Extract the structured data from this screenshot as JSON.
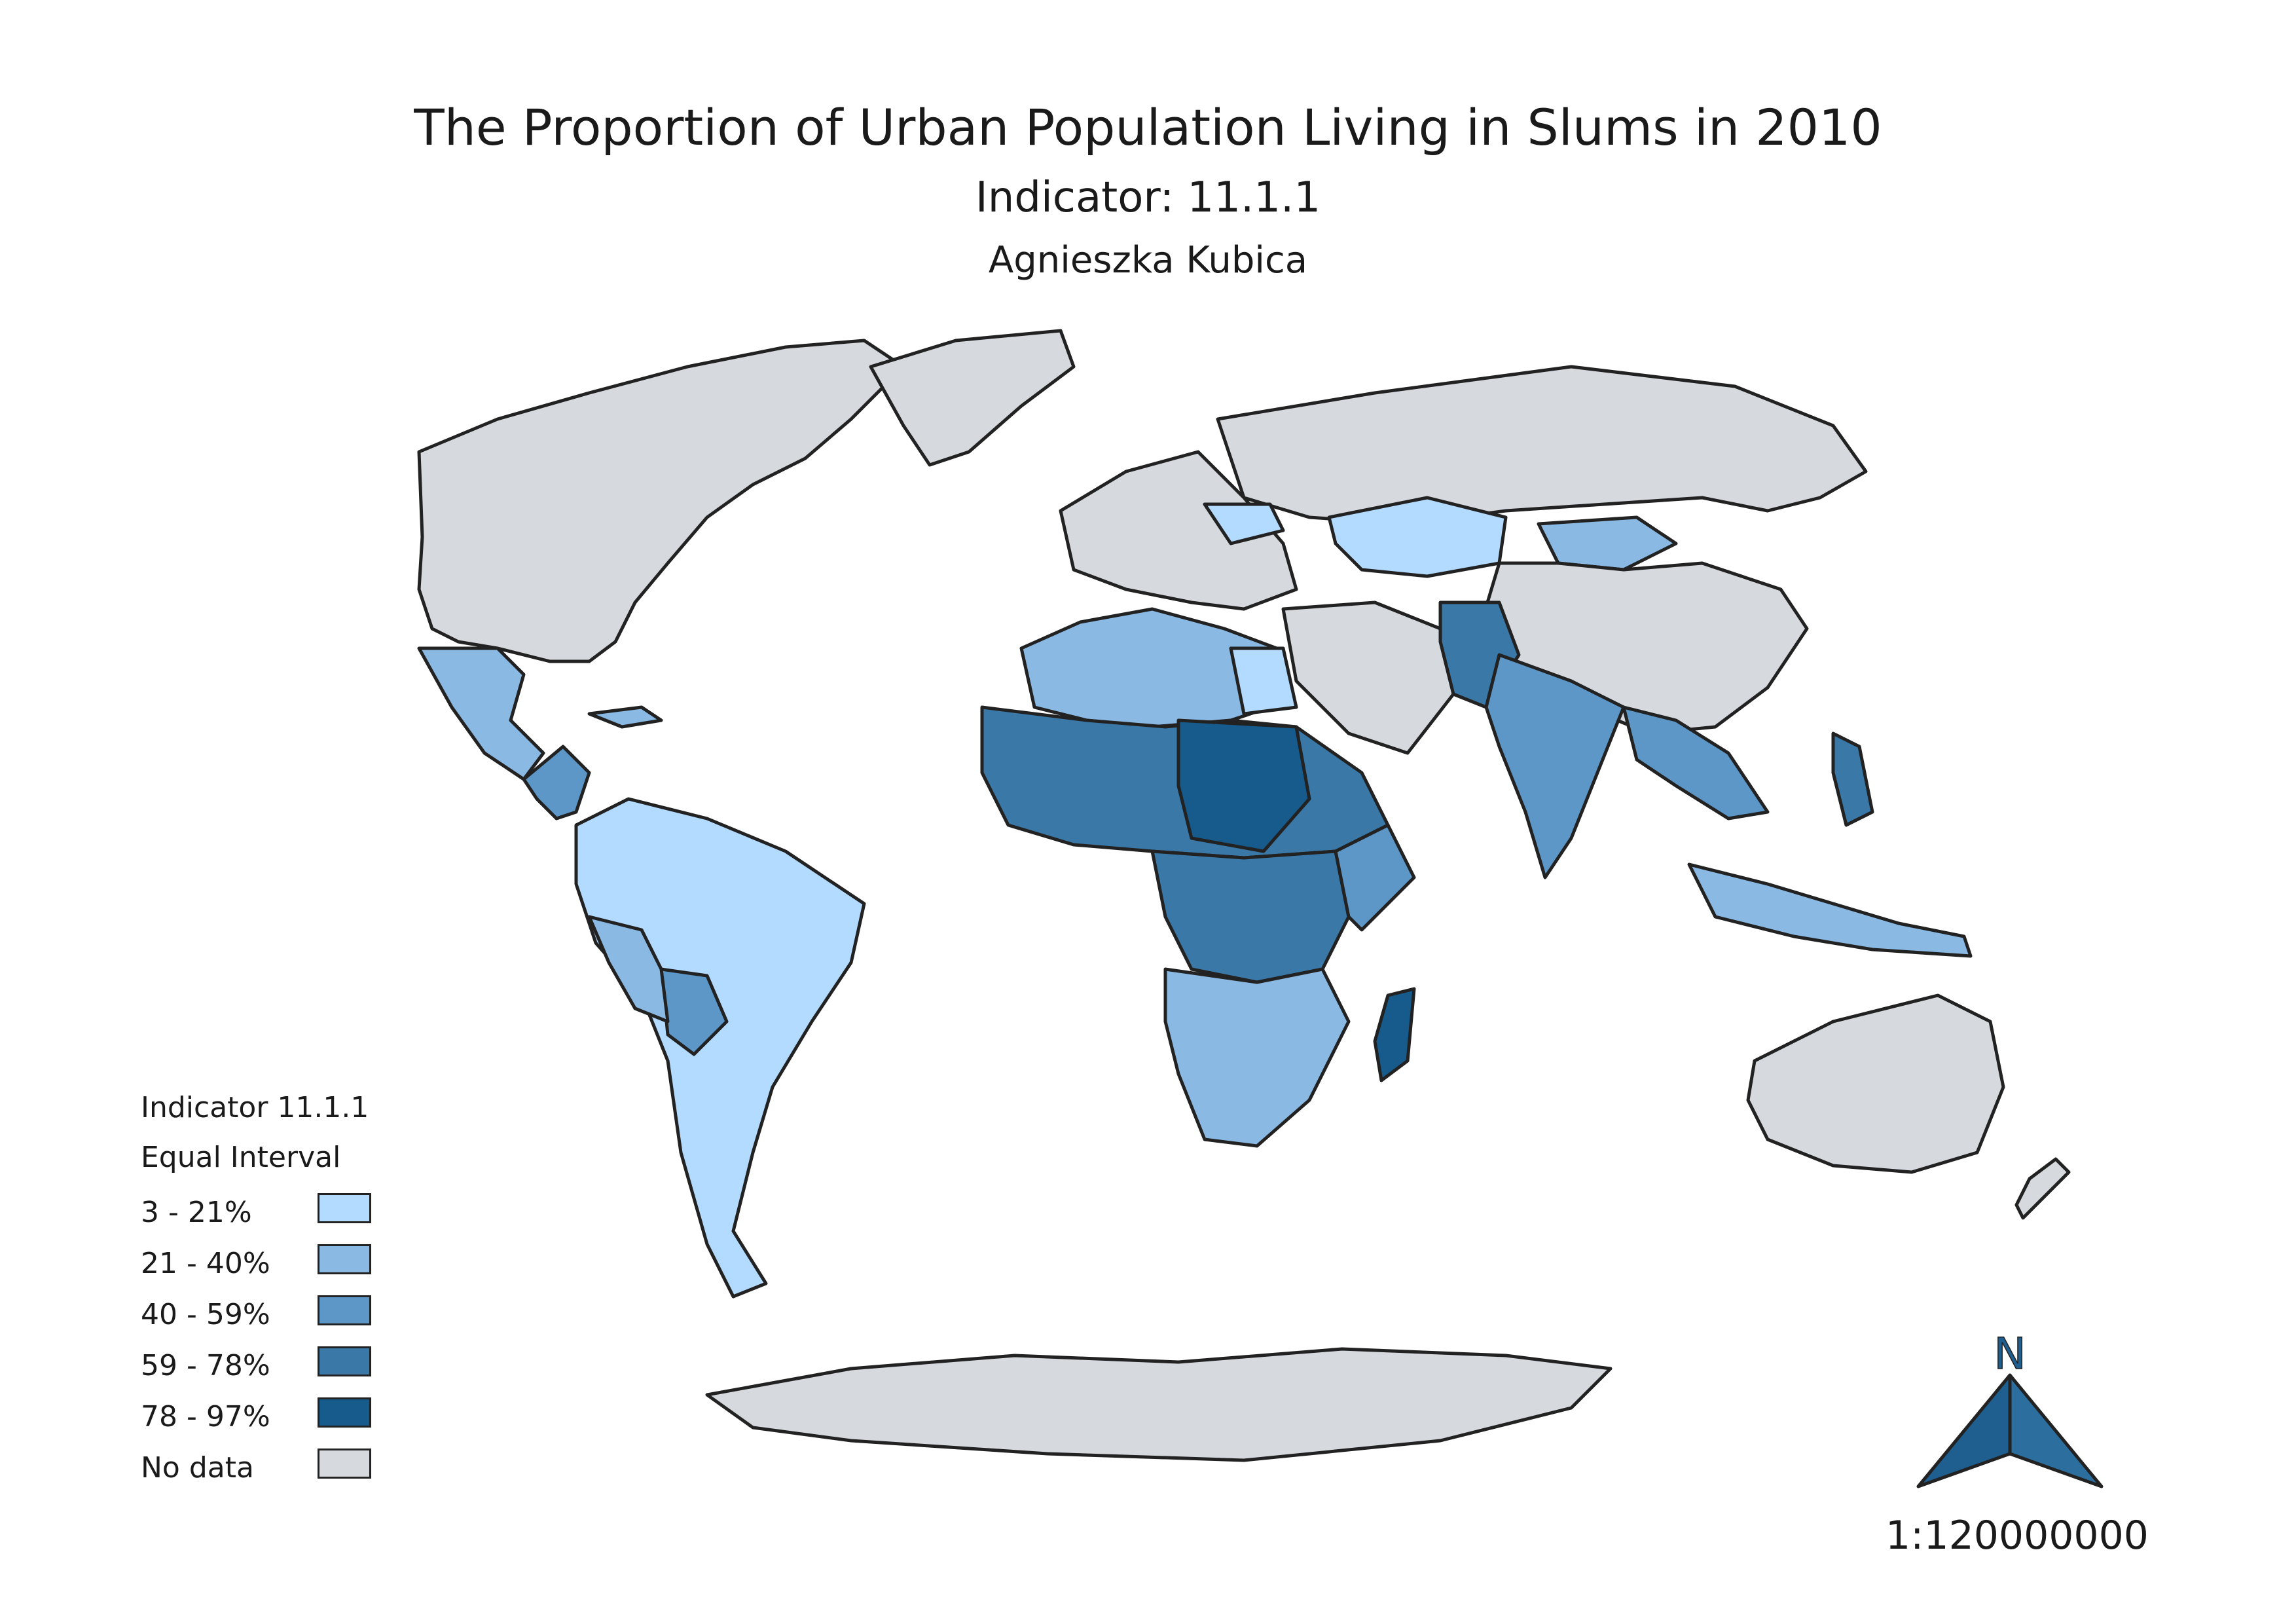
{
  "title": "The Proportion of Urban Population Living in Slums in 2010",
  "subtitle": "Indicator: 11.1.1",
  "author": "Agnieszka Kubica",
  "legend": {
    "heading_1": "Indicator 11.1.1",
    "heading_2": "Equal Interval",
    "classes": [
      {
        "label": "3 - 21%",
        "color": "#b3daff"
      },
      {
        "label": "21 - 40%",
        "color": "#8ab9e3"
      },
      {
        "label": "40 - 59%",
        "color": "#5d97c8"
      },
      {
        "label": "59 - 78%",
        "color": "#3a78a8"
      },
      {
        "label": "78 - 97%",
        "color": "#175b8c"
      },
      {
        "label": "No data",
        "color": "#d6dadf"
      }
    ]
  },
  "north_arrow": {
    "letter": "N",
    "color": "#1f5f8f"
  },
  "scale": "1:120000000",
  "colors": {
    "nodata": "#d6dadf",
    "c1": "#b3daff",
    "c2": "#8ab9e3",
    "c3": "#5d97c8",
    "c4": "#3a78a8",
    "c5": "#175b8c",
    "border": "#222222"
  }
}
